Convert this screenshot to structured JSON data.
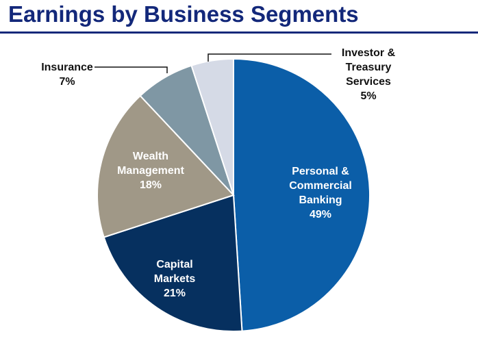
{
  "chart_data": {
    "type": "pie",
    "title": "Earnings by Business Segments",
    "slices": [
      {
        "label": "Personal & Commercial Banking",
        "value": 49,
        "color": "#0b5ea8"
      },
      {
        "label": "Capital Markets",
        "value": 21,
        "color": "#06305f"
      },
      {
        "label": "Wealth Management",
        "value": 18,
        "color": "#a09887"
      },
      {
        "label": "Insurance",
        "value": 7,
        "color": "#7f97a4"
      },
      {
        "label": "Investor & Treasury Services",
        "value": 5,
        "color": "#d5dae6"
      }
    ]
  },
  "labels": {
    "pcb": {
      "l1": "Personal &",
      "l2": "Commercial",
      "l3": "Banking",
      "pct": "49%"
    },
    "cm": {
      "l1": "Capital",
      "l2": "Markets",
      "pct": "21%"
    },
    "wm": {
      "l1": "Wealth",
      "l2": "Management",
      "pct": "18%"
    },
    "ins": {
      "l1": "Insurance",
      "pct": "7%"
    },
    "its": {
      "l1": "Investor &",
      "l2": "Treasury",
      "l3": "Services",
      "pct": "5%"
    }
  }
}
